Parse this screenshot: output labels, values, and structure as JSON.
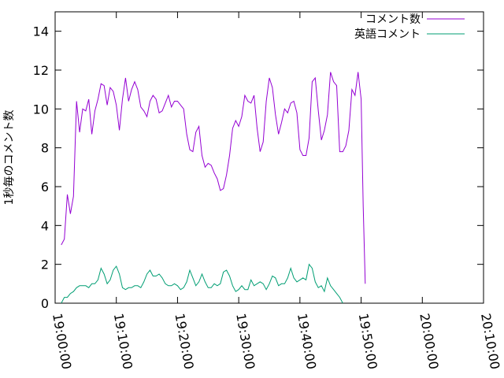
{
  "chart_data": {
    "type": "line",
    "title": "",
    "xlabel": "",
    "ylabel": "1秒毎のコメント数",
    "x_ticks": [
      "19:00:00",
      "19:10:00",
      "19:20:00",
      "19:30:00",
      "19:40:00",
      "19:50:00",
      "20:00:00",
      "20:10:00"
    ],
    "y_ticks": [
      "0",
      "2",
      "4",
      "6",
      "8",
      "10",
      "12",
      "14"
    ],
    "xlim": [
      "19:00:00",
      "20:10:00"
    ],
    "ylim": [
      0,
      15
    ],
    "grid": false,
    "legend_position": "top-right",
    "series": [
      {
        "name": "コメント数",
        "color": "#9400d3",
        "points": [
          [
            "19:01:00",
            3.0
          ],
          [
            "19:01:30",
            3.3
          ],
          [
            "19:02:00",
            5.6
          ],
          [
            "19:02:30",
            4.6
          ],
          [
            "19:03:00",
            5.5
          ],
          [
            "19:03:30",
            10.4
          ],
          [
            "19:04:00",
            8.8
          ],
          [
            "19:04:30",
            10.0
          ],
          [
            "19:05:00",
            9.9
          ],
          [
            "19:05:30",
            10.5
          ],
          [
            "19:06:00",
            8.7
          ],
          [
            "19:06:30",
            9.9
          ],
          [
            "19:07:00",
            10.5
          ],
          [
            "19:07:30",
            11.3
          ],
          [
            "19:08:00",
            11.2
          ],
          [
            "19:08:30",
            10.2
          ],
          [
            "19:09:00",
            11.1
          ],
          [
            "19:09:30",
            10.9
          ],
          [
            "19:10:00",
            10.2
          ],
          [
            "19:10:30",
            8.9
          ],
          [
            "19:11:00",
            10.5
          ],
          [
            "19:11:30",
            11.6
          ],
          [
            "19:12:00",
            10.4
          ],
          [
            "19:12:30",
            11.0
          ],
          [
            "19:13:00",
            11.4
          ],
          [
            "19:13:30",
            11.0
          ],
          [
            "19:14:00",
            10.1
          ],
          [
            "19:14:30",
            9.9
          ],
          [
            "19:15:00",
            9.6
          ],
          [
            "19:15:30",
            10.4
          ],
          [
            "19:16:00",
            10.7
          ],
          [
            "19:16:30",
            10.5
          ],
          [
            "19:17:00",
            9.8
          ],
          [
            "19:17:30",
            9.9
          ],
          [
            "19:18:00",
            10.3
          ],
          [
            "19:18:30",
            10.7
          ],
          [
            "19:19:00",
            10.1
          ],
          [
            "19:19:30",
            10.4
          ],
          [
            "19:20:00",
            10.4
          ],
          [
            "19:20:30",
            10.2
          ],
          [
            "19:21:00",
            10.0
          ],
          [
            "19:21:30",
            8.7
          ],
          [
            "19:22:00",
            7.9
          ],
          [
            "19:22:30",
            7.8
          ],
          [
            "19:23:00",
            8.8
          ],
          [
            "19:23:30",
            9.1
          ],
          [
            "19:24:00",
            7.6
          ],
          [
            "19:24:30",
            7.0
          ],
          [
            "19:25:00",
            7.2
          ],
          [
            "19:25:30",
            7.1
          ],
          [
            "19:26:00",
            6.7
          ],
          [
            "19:26:30",
            6.4
          ],
          [
            "19:27:00",
            5.8
          ],
          [
            "19:27:30",
            5.9
          ],
          [
            "19:28:00",
            6.6
          ],
          [
            "19:28:30",
            7.6
          ],
          [
            "19:29:00",
            9.0
          ],
          [
            "19:29:30",
            9.4
          ],
          [
            "19:30:00",
            9.1
          ],
          [
            "19:30:30",
            9.6
          ],
          [
            "19:31:00",
            10.7
          ],
          [
            "19:31:30",
            10.4
          ],
          [
            "19:32:00",
            10.3
          ],
          [
            "19:32:30",
            10.7
          ],
          [
            "19:33:00",
            9.0
          ],
          [
            "19:33:30",
            7.8
          ],
          [
            "19:34:00",
            8.3
          ],
          [
            "19:34:30",
            10.4
          ],
          [
            "19:35:00",
            11.6
          ],
          [
            "19:35:30",
            11.1
          ],
          [
            "19:36:00",
            9.7
          ],
          [
            "19:36:30",
            8.7
          ],
          [
            "19:37:00",
            9.3
          ],
          [
            "19:37:30",
            10.0
          ],
          [
            "19:38:00",
            9.8
          ],
          [
            "19:38:30",
            10.3
          ],
          [
            "19:39:00",
            10.4
          ],
          [
            "19:39:30",
            9.8
          ],
          [
            "19:40:00",
            7.9
          ],
          [
            "19:40:30",
            7.6
          ],
          [
            "19:41:00",
            7.6
          ],
          [
            "19:41:30",
            8.5
          ],
          [
            "19:42:00",
            11.4
          ],
          [
            "19:42:30",
            11.6
          ],
          [
            "19:43:00",
            9.9
          ],
          [
            "19:43:30",
            8.4
          ],
          [
            "19:44:00",
            8.9
          ],
          [
            "19:44:30",
            9.7
          ],
          [
            "19:45:00",
            11.9
          ],
          [
            "19:45:30",
            11.4
          ],
          [
            "19:46:00",
            11.2
          ],
          [
            "19:46:30",
            7.8
          ],
          [
            "19:47:00",
            7.8
          ],
          [
            "19:47:30",
            8.1
          ],
          [
            "19:48:00",
            8.9
          ],
          [
            "19:48:30",
            11.0
          ],
          [
            "19:49:00",
            10.7
          ],
          [
            "19:49:30",
            11.9
          ],
          [
            "19:50:00",
            10.5
          ],
          [
            "19:50:20",
            5.0
          ],
          [
            "19:50:40",
            1.0
          ]
        ]
      },
      {
        "name": "英語コメント",
        "color": "#009e73",
        "points": [
          [
            "19:01:00",
            0.0
          ],
          [
            "19:01:30",
            0.3
          ],
          [
            "19:02:00",
            0.3
          ],
          [
            "19:02:30",
            0.5
          ],
          [
            "19:03:00",
            0.6
          ],
          [
            "19:03:30",
            0.8
          ],
          [
            "19:04:00",
            0.9
          ],
          [
            "19:04:30",
            0.9
          ],
          [
            "19:05:00",
            0.9
          ],
          [
            "19:05:30",
            0.8
          ],
          [
            "19:06:00",
            1.0
          ],
          [
            "19:06:30",
            1.0
          ],
          [
            "19:07:00",
            1.2
          ],
          [
            "19:07:30",
            1.8
          ],
          [
            "19:08:00",
            1.5
          ],
          [
            "19:08:30",
            1.0
          ],
          [
            "19:09:00",
            1.2
          ],
          [
            "19:09:30",
            1.7
          ],
          [
            "19:10:00",
            1.9
          ],
          [
            "19:10:30",
            1.5
          ],
          [
            "19:11:00",
            0.8
          ],
          [
            "19:11:30",
            0.7
          ],
          [
            "19:12:00",
            0.8
          ],
          [
            "19:12:30",
            0.8
          ],
          [
            "19:13:00",
            0.9
          ],
          [
            "19:13:30",
            0.9
          ],
          [
            "19:14:00",
            0.8
          ],
          [
            "19:14:30",
            1.1
          ],
          [
            "19:15:00",
            1.5
          ],
          [
            "19:15:30",
            1.7
          ],
          [
            "19:16:00",
            1.4
          ],
          [
            "19:16:30",
            1.4
          ],
          [
            "19:17:00",
            1.5
          ],
          [
            "19:17:30",
            1.3
          ],
          [
            "19:18:00",
            1.0
          ],
          [
            "19:18:30",
            0.9
          ],
          [
            "19:19:00",
            0.9
          ],
          [
            "19:19:30",
            1.0
          ],
          [
            "19:20:00",
            0.9
          ],
          [
            "19:20:30",
            0.7
          ],
          [
            "19:21:00",
            0.8
          ],
          [
            "19:21:30",
            1.1
          ],
          [
            "19:22:00",
            1.7
          ],
          [
            "19:22:30",
            1.3
          ],
          [
            "19:23:00",
            0.9
          ],
          [
            "19:23:30",
            1.1
          ],
          [
            "19:24:00",
            1.5
          ],
          [
            "19:24:30",
            1.1
          ],
          [
            "19:25:00",
            0.8
          ],
          [
            "19:25:30",
            0.8
          ],
          [
            "19:26:00",
            1.0
          ],
          [
            "19:26:30",
            0.9
          ],
          [
            "19:27:00",
            1.0
          ],
          [
            "19:27:30",
            1.6
          ],
          [
            "19:28:00",
            1.7
          ],
          [
            "19:28:30",
            1.4
          ],
          [
            "19:29:00",
            0.9
          ],
          [
            "19:29:30",
            0.6
          ],
          [
            "19:30:00",
            0.7
          ],
          [
            "19:30:30",
            0.9
          ],
          [
            "19:31:00",
            0.7
          ],
          [
            "19:31:30",
            0.7
          ],
          [
            "19:32:00",
            1.2
          ],
          [
            "19:32:30",
            0.9
          ],
          [
            "19:33:00",
            1.0
          ],
          [
            "19:33:30",
            1.1
          ],
          [
            "19:34:00",
            1.0
          ],
          [
            "19:34:30",
            0.7
          ],
          [
            "19:35:00",
            1.0
          ],
          [
            "19:35:30",
            1.4
          ],
          [
            "19:36:00",
            1.3
          ],
          [
            "19:36:30",
            0.9
          ],
          [
            "19:37:00",
            1.0
          ],
          [
            "19:37:30",
            1.0
          ],
          [
            "19:38:00",
            1.3
          ],
          [
            "19:38:30",
            1.8
          ],
          [
            "19:39:00",
            1.3
          ],
          [
            "19:39:30",
            1.1
          ],
          [
            "19:40:00",
            1.2
          ],
          [
            "19:40:30",
            1.3
          ],
          [
            "19:41:00",
            1.2
          ],
          [
            "19:41:30",
            2.0
          ],
          [
            "19:42:00",
            1.8
          ],
          [
            "19:42:30",
            1.1
          ],
          [
            "19:43:00",
            0.8
          ],
          [
            "19:43:30",
            0.9
          ],
          [
            "19:44:00",
            0.6
          ],
          [
            "19:44:30",
            1.3
          ],
          [
            "19:45:00",
            0.9
          ],
          [
            "19:45:30",
            0.7
          ],
          [
            "19:46:00",
            0.5
          ],
          [
            "19:46:30",
            0.3
          ],
          [
            "19:47:00",
            0.0
          ]
        ]
      }
    ]
  }
}
